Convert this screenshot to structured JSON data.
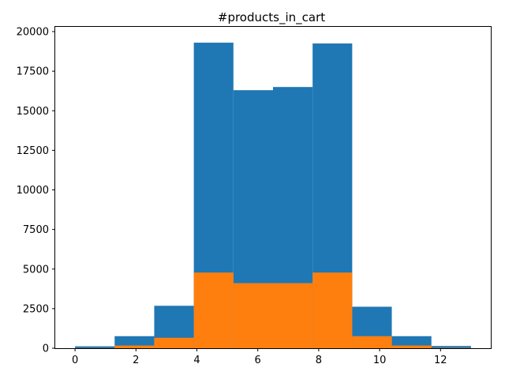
{
  "chart_data": {
    "type": "bar",
    "title": "#products_in_cart",
    "xlabel": "",
    "ylabel": "",
    "xlim": [
      -0.65,
      13.65
    ],
    "ylim": [
      0,
      20300
    ],
    "grid": false,
    "bin_edges": [
      0,
      1.3,
      2.6,
      3.9,
      5.2,
      6.5,
      7.8,
      9.1,
      10.4,
      11.7,
      13.0
    ],
    "x_ticks": [
      0,
      2,
      4,
      6,
      8,
      10,
      12
    ],
    "y_ticks": [
      0,
      2500,
      5000,
      7500,
      10000,
      12500,
      15000,
      17500,
      20000
    ],
    "series": [
      {
        "color": "#1f77b4",
        "values": [
          120,
          760,
          2680,
          19300,
          16300,
          16500,
          19250,
          2620,
          760,
          140
        ]
      },
      {
        "color": "#ff7f0e",
        "values": [
          10,
          170,
          660,
          4780,
          4110,
          4110,
          4780,
          760,
          170,
          20
        ]
      }
    ]
  }
}
